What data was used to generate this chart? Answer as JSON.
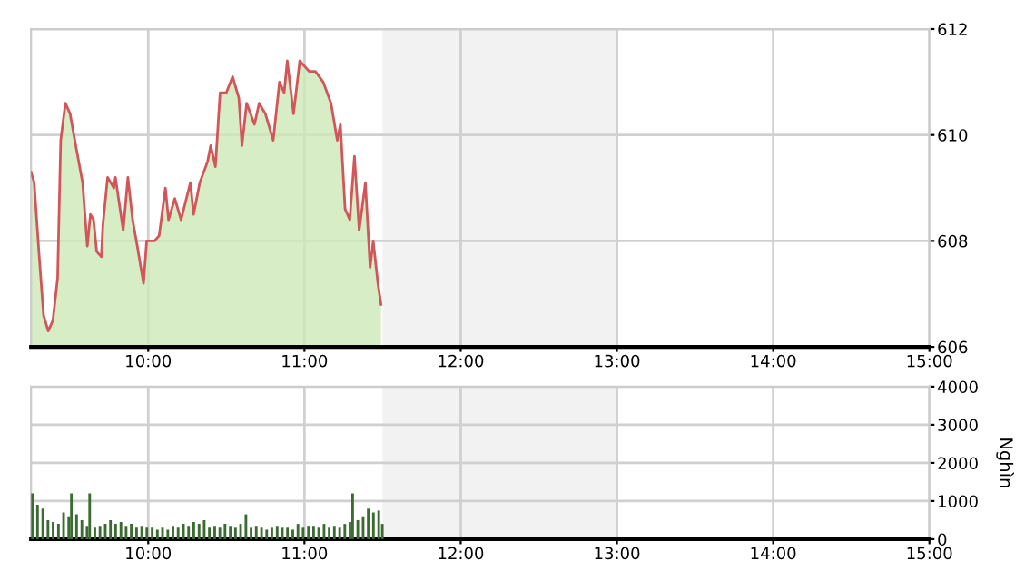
{
  "chart_data": [
    {
      "type": "area",
      "xlim": [
        9.25,
        15
      ],
      "xticks": [
        {
          "value": 10,
          "label": "10:00"
        },
        {
          "value": 11,
          "label": "11:00"
        },
        {
          "value": 12,
          "label": "12:00"
        },
        {
          "value": 13,
          "label": "13:00"
        },
        {
          "value": 14,
          "label": "14:00"
        },
        {
          "value": 15,
          "label": "15:00"
        }
      ],
      "ylim": [
        606,
        612
      ],
      "yticks": [
        606,
        608,
        610,
        612
      ],
      "grid": true,
      "bands": [
        {
          "axis": "x",
          "from": 11.5,
          "to": 13,
          "color": "#f2f2f2"
        }
      ],
      "series": [
        {
          "type": "area",
          "color": "#cde8b8",
          "x": [
            9.25,
            9.27,
            9.3,
            9.33,
            9.36,
            9.39,
            9.42,
            9.44,
            9.47,
            9.5,
            9.53,
            9.58,
            9.61,
            9.63,
            9.65,
            9.67,
            9.7,
            9.71,
            9.74,
            9.78,
            9.79,
            9.81,
            9.84,
            9.87,
            9.9,
            9.93,
            9.97,
            9.99,
            10.04,
            10.07,
            10.11,
            10.13,
            10.17,
            10.21,
            10.27,
            10.29,
            10.33,
            10.38,
            10.4,
            10.43,
            10.46,
            10.5,
            10.54,
            10.58,
            10.6,
            10.63,
            10.68,
            10.71,
            10.75,
            10.8,
            10.84,
            10.87,
            10.89,
            10.93,
            10.97,
            11.0,
            11.03,
            11.07,
            11.12,
            11.17,
            11.21,
            11.23,
            11.26,
            11.29,
            11.32,
            11.35,
            11.39,
            11.42,
            11.44,
            11.47,
            11.49
          ],
          "values": [
            609.3,
            609.1,
            607.8,
            606.6,
            606.3,
            606.5,
            607.3,
            609.9,
            610.6,
            610.4,
            609.9,
            609.1,
            607.9,
            608.5,
            608.4,
            607.8,
            607.7,
            608.3,
            609.2,
            609.0,
            609.2,
            608.8,
            608.2,
            609.2,
            608.4,
            607.9,
            607.2,
            608.0,
            608.0,
            608.1,
            609.0,
            608.4,
            608.8,
            608.4,
            609.1,
            608.5,
            609.1,
            609.5,
            609.8,
            609.4,
            610.8,
            610.8,
            611.1,
            610.7,
            609.8,
            610.6,
            610.2,
            610.6,
            610.4,
            609.9,
            611.0,
            610.8,
            611.4,
            610.4,
            611.4,
            611.3,
            611.2,
            611.2,
            611.0,
            610.6,
            609.9,
            610.2,
            608.6,
            608.4,
            609.6,
            608.2,
            609.1,
            607.5,
            608.0,
            607.2,
            606.8
          ]
        },
        {
          "type": "line",
          "color": "#d2555a",
          "x": [
            9.25,
            9.27,
            9.3,
            9.33,
            9.36,
            9.39,
            9.42,
            9.44,
            9.47,
            9.5,
            9.53,
            9.58,
            9.61,
            9.63,
            9.65,
            9.67,
            9.7,
            9.71,
            9.74,
            9.78,
            9.79,
            9.81,
            9.84,
            9.87,
            9.9,
            9.93,
            9.97,
            9.99,
            10.04,
            10.07,
            10.11,
            10.13,
            10.17,
            10.21,
            10.27,
            10.29,
            10.33,
            10.38,
            10.4,
            10.43,
            10.46,
            10.5,
            10.54,
            10.58,
            10.6,
            10.63,
            10.68,
            10.71,
            10.75,
            10.8,
            10.84,
            10.87,
            10.89,
            10.93,
            10.97,
            11.0,
            11.03,
            11.07,
            11.12,
            11.17,
            11.21,
            11.23,
            11.26,
            11.29,
            11.32,
            11.35,
            11.39,
            11.42,
            11.44,
            11.47,
            11.49
          ],
          "values": [
            609.3,
            609.1,
            607.8,
            606.6,
            606.3,
            606.5,
            607.3,
            609.9,
            610.6,
            610.4,
            609.9,
            609.1,
            607.9,
            608.5,
            608.4,
            607.8,
            607.7,
            608.3,
            609.2,
            609.0,
            609.2,
            608.8,
            608.2,
            609.2,
            608.4,
            607.9,
            607.2,
            608.0,
            608.0,
            608.1,
            609.0,
            608.4,
            608.8,
            608.4,
            609.1,
            608.5,
            609.1,
            609.5,
            609.8,
            609.4,
            610.8,
            610.8,
            611.1,
            610.7,
            609.8,
            610.6,
            610.2,
            610.6,
            610.4,
            609.9,
            611.0,
            610.8,
            611.4,
            610.4,
            611.4,
            611.3,
            611.2,
            611.2,
            611.0,
            610.6,
            609.9,
            610.2,
            608.6,
            608.4,
            609.6,
            608.2,
            609.1,
            607.5,
            608.0,
            607.2,
            606.8
          ]
        }
      ]
    },
    {
      "type": "bar",
      "xlim": [
        9.25,
        15
      ],
      "xticks": [
        {
          "value": 10,
          "label": "10:00"
        },
        {
          "value": 11,
          "label": "11:00"
        },
        {
          "value": 12,
          "label": "12:00"
        },
        {
          "value": 13,
          "label": "13:00"
        },
        {
          "value": 14,
          "label": "14:00"
        },
        {
          "value": 15,
          "label": "15:00"
        }
      ],
      "ylim": [
        0,
        4000
      ],
      "yticks": [
        0,
        1000,
        2000,
        3000,
        4000
      ],
      "grid": true,
      "ylabel": "Nghìn",
      "bands": [
        {
          "axis": "x",
          "from": 11.5,
          "to": 13,
          "color": "#f2f2f2"
        }
      ],
      "series": [
        {
          "color": "#3a6b30",
          "x": [
            9.25,
            9.283,
            9.317,
            9.35,
            9.383,
            9.417,
            9.45,
            9.483,
            9.5,
            9.533,
            9.567,
            9.6,
            9.617,
            9.65,
            9.683,
            9.717,
            9.75,
            9.783,
            9.817,
            9.85,
            9.883,
            9.917,
            9.95,
            9.983,
            10.017,
            10.05,
            10.083,
            10.117,
            10.15,
            10.183,
            10.217,
            10.25,
            10.283,
            10.317,
            10.35,
            10.383,
            10.417,
            10.45,
            10.483,
            10.517,
            10.55,
            10.583,
            10.617,
            10.65,
            10.683,
            10.717,
            10.75,
            10.783,
            10.817,
            10.85,
            10.883,
            10.917,
            10.95,
            10.983,
            11.017,
            11.05,
            11.083,
            11.117,
            11.15,
            11.183,
            11.217,
            11.25,
            11.283,
            11.3,
            11.333,
            11.367,
            11.4,
            11.433,
            11.467,
            11.49
          ],
          "values": [
            1200,
            900,
            800,
            500,
            450,
            400,
            700,
            600,
            1200,
            650,
            500,
            350,
            1200,
            300,
            350,
            400,
            500,
            400,
            450,
            350,
            400,
            300,
            350,
            300,
            300,
            250,
            300,
            250,
            350,
            300,
            400,
            350,
            450,
            400,
            500,
            300,
            350,
            300,
            400,
            350,
            300,
            400,
            650,
            300,
            350,
            300,
            250,
            300,
            350,
            300,
            300,
            250,
            400,
            300,
            350,
            350,
            300,
            400,
            300,
            350,
            300,
            400,
            450,
            1200,
            500,
            600,
            800,
            700,
            750,
            400
          ]
        }
      ]
    }
  ]
}
